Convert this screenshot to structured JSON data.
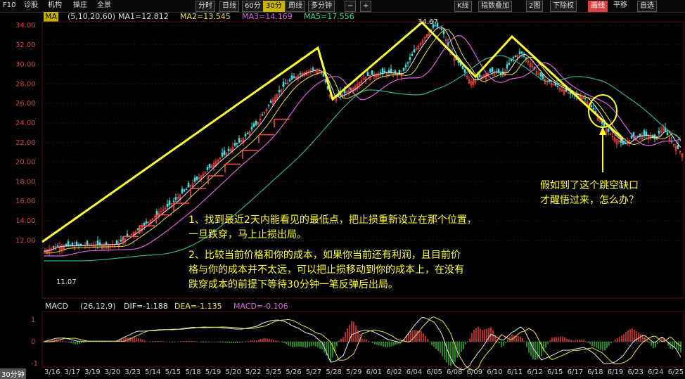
{
  "toolbar": {
    "left": [
      "F10",
      "诊股",
      "机构",
      "操庄",
      "全景"
    ],
    "periods": [
      "分时",
      "日线",
      "60分",
      "30分",
      "周线",
      "多分钟"
    ],
    "active_period": "30分",
    "right": [
      "K线",
      "指数叠加",
      "2图",
      "下除权",
      "画线",
      "平移",
      "自选"
    ]
  },
  "ma_legend": {
    "badge": "MA",
    "params": "(5,10,20,60)",
    "ma1": "MA1=12.812",
    "ma2": "MA2=13.545",
    "ma3": "MA3=14.169",
    "ma5": "MA5=17.556"
  },
  "price_axis": {
    "labels": [
      "34.00",
      "32.00",
      "30.00",
      "28.00",
      "26.00",
      "24.00",
      "22.00",
      "20.00",
      "18.00",
      "16.00",
      "14.00",
      "12.00"
    ]
  },
  "macd_axis": {
    "labels": [
      "1",
      "0",
      "-1"
    ]
  },
  "marks": {
    "high": "34.67",
    "low": "11.07"
  },
  "macd_legend": {
    "label": "MACD",
    "params": "(26,12,9)",
    "dif": "DIF=-1.188",
    "dea": "DEA=-1.135",
    "macd": "MACD=-0.106"
  },
  "x_axis": {
    "period": "30分钟",
    "dates": [
      "3/16",
      "3/17",
      "3/19",
      "3/20",
      "3/23",
      "5/14",
      "5/15",
      "5/18",
      "5/19",
      "5/20",
      "5/22",
      "5/25",
      "5/26",
      "5/27",
      "5/28",
      "5/29",
      "6/01",
      "6/02",
      "6/04",
      "6/05",
      "6/08",
      "6/09",
      "6/10",
      "6/11",
      "6/12",
      "6/15",
      "6/17",
      "6/18",
      "6/19",
      "6/23",
      "6/24",
      "6/25"
    ]
  },
  "annotations": {
    "main_line1": "1、找到最近2天内能看见的最低点，把止损重新设立在那个位置，",
    "main_line2": "一旦跌穿，马上止损出局。",
    "main_line3": "2、比较当前价格和你的成本，如果你当前还有利润，且目前价",
    "main_line4": "格与你的成本并不太远，可以把止损移动到你的成本上，在没有",
    "main_line5": "跌穿成本的前提下等待30分钟一笔反弹后出局。",
    "gap_line1": "假如到了这个跳空缺口",
    "gap_line2": "才醒悟过来，怎么办？"
  }
}
